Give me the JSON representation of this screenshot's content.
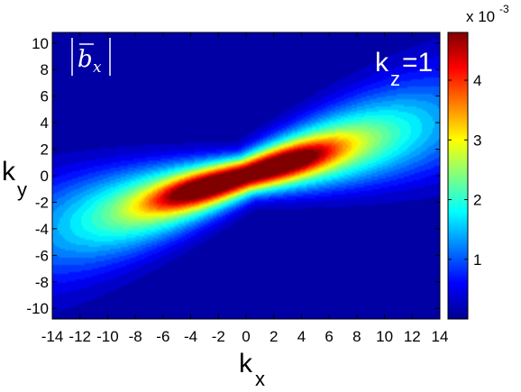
{
  "chart_data": {
    "type": "heatmap",
    "title": "",
    "quantity_label": {
      "symbol": "b",
      "subscript": "x"
    },
    "annotation": {
      "base": "k",
      "subscript": "z",
      "text": "=1"
    },
    "xlabel": {
      "base": "k",
      "subscript": "x"
    },
    "ylabel": {
      "base": "k",
      "subscript": "y"
    },
    "xlim": [
      -14,
      14
    ],
    "ylim": [
      -10.8,
      10.8
    ],
    "xticks": [
      -14,
      -12,
      -10,
      -8,
      -6,
      -4,
      -2,
      0,
      2,
      4,
      6,
      8,
      10,
      12,
      14
    ],
    "yticks": [
      -10,
      -8,
      -6,
      -4,
      -2,
      0,
      2,
      4,
      6,
      8,
      10
    ],
    "grid": false,
    "colormap": "jet",
    "colorbar": {
      "range": [
        0.0,
        0.0048
      ],
      "ticks": [
        1,
        2,
        3,
        4
      ],
      "multiplier": "x 10",
      "exponent": "-3"
    },
    "structure": {
      "ridge_slope": 0.31,
      "background": 0.0001,
      "peaks": [
        {
          "kx": 3.2,
          "ky": 1.1,
          "value": 0.0047
        },
        {
          "kx": -3.4,
          "ky": -1.0,
          "value": 0.0048
        }
      ]
    }
  }
}
